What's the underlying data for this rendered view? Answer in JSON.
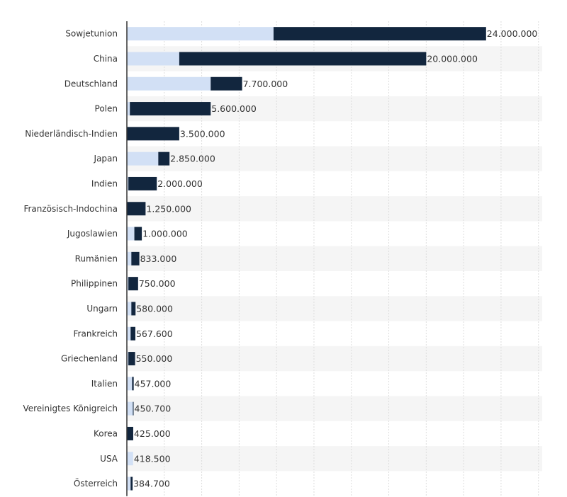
{
  "chart_data": {
    "type": "bar",
    "orientation": "horizontal",
    "stacked": true,
    "categories": [
      "Sowjetunion",
      "China",
      "Deutschland",
      "Polen",
      "Niederländisch-Indien",
      "Japan",
      "Indien",
      "Französisch-Indochina",
      "Jugoslawien",
      "Rumänien",
      "Philippinen",
      "Ungarn",
      "Frankreich",
      "Griechenland",
      "Italien",
      "Vereinigtes Königreich",
      "Korea",
      "USA",
      "Österreich"
    ],
    "totals": [
      24000000,
      20000000,
      7700000,
      5600000,
      3500000,
      2850000,
      2000000,
      1250000,
      1000000,
      833000,
      750000,
      580000,
      567600,
      550000,
      457000,
      450700,
      425000,
      418500,
      384700
    ],
    "value_labels": [
      "24.000.000",
      "20.000.000",
      "7.700.000",
      "5.600.000",
      "3.500.000",
      "2.850.000",
      "2.000.000",
      "1.250.000",
      "1.000.000",
      "833.000",
      "750.000",
      "580.000",
      "567.600",
      "550.000",
      "457.000",
      "450.700",
      "425.000",
      "418.500",
      "384.700"
    ],
    "series": [
      {
        "values": [
          9800000,
          3500000,
          5600000,
          200000,
          0,
          2100000,
          100000,
          0,
          500000,
          300000,
          100000,
          300000,
          250000,
          100000,
          350000,
          400000,
          0,
          418500,
          250000
        ],
        "color": "#d2e0f5"
      },
      {
        "values": [
          14200000,
          16500000,
          2100000,
          5400000,
          3500000,
          750000,
          1900000,
          1250000,
          500000,
          533000,
          650000,
          280000,
          317600,
          450000,
          107000,
          50700,
          425000,
          0,
          134700
        ],
        "color": "#12263e"
      }
    ],
    "xlim": [
      0,
      27750000
    ],
    "grid": true,
    "colors": {
      "stripe": "#f5f5f5",
      "axis": "#333333",
      "gridline": "#dddddd"
    }
  }
}
